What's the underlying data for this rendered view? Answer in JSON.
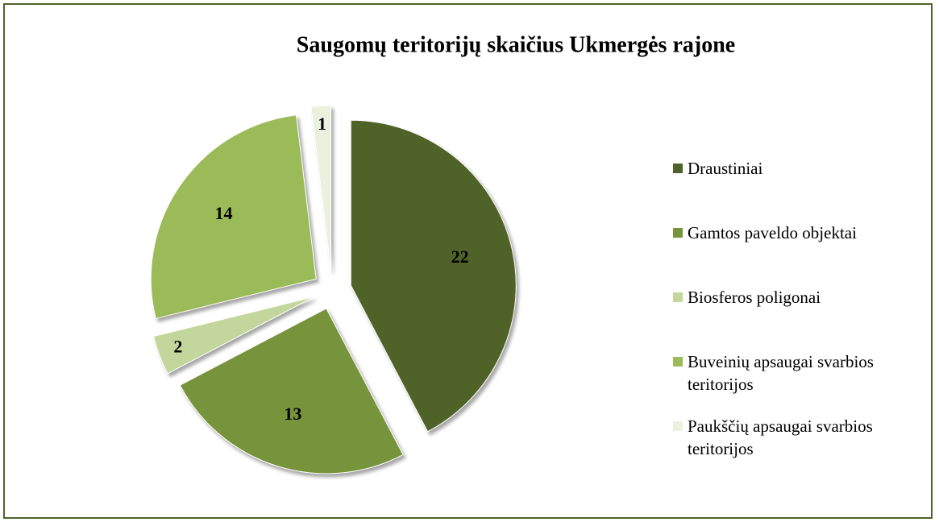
{
  "chart_data": {
    "type": "pie",
    "title": "Saugomų teritorijų  skaičius Ukmergės rajone",
    "categories": [
      "Draustiniai",
      "Gamtos paveldo objektai",
      "Biosferos poligonai",
      "Buveinių apsaugai svarbios teritorijos",
      "Paukščių apsaugai svarbios teritorijos"
    ],
    "values": [
      22,
      13,
      2,
      14,
      1
    ],
    "colors": [
      "#4f6228",
      "#77933c",
      "#c3d69b",
      "#9bbb59",
      "#ebf1de"
    ],
    "legend": "right"
  }
}
